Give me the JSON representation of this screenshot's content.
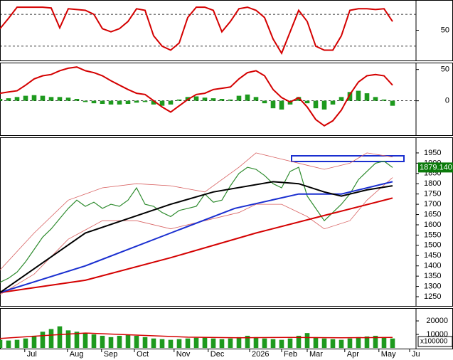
{
  "chart_data": [
    {
      "type": "line",
      "xlim": [
        0,
        48.75
      ],
      "ylim": [
        12,
        88
      ],
      "yticks": [
        50
      ],
      "levels": [
        30,
        70
      ],
      "x": [
        0,
        1,
        2,
        3,
        4,
        5,
        6,
        7,
        8,
        9,
        10,
        11,
        12,
        13,
        14,
        15,
        16,
        17,
        18,
        19,
        20,
        21,
        22,
        23,
        24,
        25,
        26,
        27,
        28,
        29,
        30,
        31,
        32,
        33,
        34,
        35,
        36,
        37,
        38,
        39,
        40,
        41,
        42,
        43,
        44,
        45,
        46
      ],
      "series": [
        {
          "type": "line",
          "color": "#d40000",
          "values": [
            52,
            65,
            79,
            79,
            79,
            79,
            78,
            53,
            77,
            76,
            75,
            70,
            52,
            48,
            52,
            61,
            77,
            75,
            43,
            30,
            25,
            34,
            66,
            79,
            79,
            75,
            48,
            61,
            77,
            79,
            75,
            66,
            39,
            21,
            48,
            75,
            61,
            30,
            25,
            25,
            43,
            75,
            77,
            77,
            76,
            77,
            61
          ]
        }
      ]
    },
    {
      "type": "line",
      "xlim": [
        0,
        48.75
      ],
      "ylim": [
        -55,
        61
      ],
      "yticks": [
        50,
        0
      ],
      "levels": [
        0
      ],
      "x": [
        0,
        1,
        2,
        3,
        4,
        5,
        6,
        7,
        8,
        9,
        10,
        11,
        12,
        13,
        14,
        15,
        16,
        17,
        18,
        19,
        20,
        21,
        22,
        23,
        24,
        25,
        26,
        27,
        28,
        29,
        30,
        31,
        32,
        33,
        34,
        35,
        36,
        37,
        38,
        39,
        40,
        41,
        42,
        43,
        44,
        45,
        46
      ],
      "series": [
        {
          "type": "bar",
          "color": "#1e9a1e",
          "values": [
            3,
            4,
            6,
            8,
            9,
            8,
            6,
            6,
            5,
            3,
            -2,
            -4,
            -5,
            -6,
            -6,
            -5,
            -3,
            -2,
            -6,
            -8,
            -6,
            2,
            6,
            7,
            5,
            4,
            3,
            2,
            8,
            10,
            6,
            -4,
            -12,
            -14,
            -6,
            6,
            -4,
            -12,
            -14,
            -6,
            6,
            14,
            16,
            12,
            6,
            2,
            -8
          ]
        },
        {
          "type": "line",
          "color": "#d40000",
          "values": [
            12,
            14,
            16,
            25,
            35,
            40,
            42,
            48,
            52,
            54,
            48,
            45,
            40,
            32,
            25,
            18,
            12,
            10,
            0,
            -10,
            -18,
            -8,
            2,
            10,
            12,
            18,
            20,
            22,
            35,
            45,
            48,
            40,
            18,
            5,
            -2,
            5,
            -10,
            -30,
            -40,
            -32,
            -15,
            10,
            30,
            40,
            42,
            40,
            25
          ]
        }
      ]
    },
    {
      "type": "line",
      "xlim": [
        0,
        48.75
      ],
      "ylim": [
        1205,
        2026
      ],
      "yticks": [
        1250,
        1300,
        1350,
        1400,
        1450,
        1500,
        1550,
        1600,
        1650,
        1700,
        1750,
        1800,
        1850,
        1900,
        1950
      ],
      "last_price": {
        "value": 1879.14,
        "label": "1879.140"
      },
      "x": [
        0,
        1,
        2,
        3,
        4,
        5,
        6,
        7,
        8,
        9,
        10,
        11,
        12,
        13,
        14,
        15,
        16,
        17,
        18,
        19,
        20,
        21,
        22,
        23,
        24,
        25,
        26,
        27,
        28,
        29,
        30,
        31,
        32,
        33,
        34,
        35,
        36,
        37,
        38,
        39,
        40,
        41,
        42,
        43,
        44,
        45,
        46
      ],
      "series": [
        {
          "type": "line",
          "color": "#d86060",
          "width": 0.8,
          "x": [
            0,
            4,
            8,
            12,
            16,
            20,
            24,
            28,
            30,
            33,
            36,
            38,
            41,
            43,
            46
          ],
          "values": [
            1380,
            1560,
            1720,
            1780,
            1800,
            1790,
            1760,
            1880,
            1950,
            1920,
            1890,
            1870,
            1900,
            1950,
            1930
          ]
        },
        {
          "type": "line",
          "color": "#d86060",
          "width": 0.8,
          "x": [
            0,
            4,
            8,
            12,
            16,
            20,
            24,
            28,
            30,
            33,
            36,
            38,
            41,
            43,
            46
          ],
          "values": [
            1260,
            1360,
            1530,
            1620,
            1620,
            1580,
            1620,
            1660,
            1700,
            1700,
            1640,
            1580,
            1620,
            1720,
            1830
          ]
        },
        {
          "type": "line",
          "color": "#2e8b2e",
          "width": 1.2,
          "values": [
            1320,
            1340,
            1370,
            1420,
            1480,
            1540,
            1580,
            1630,
            1680,
            1720,
            1690,
            1710,
            1680,
            1700,
            1690,
            1720,
            1780,
            1700,
            1690,
            1660,
            1640,
            1670,
            1680,
            1690,
            1750,
            1710,
            1720,
            1790,
            1850,
            1880,
            1870,
            1840,
            1800,
            1780,
            1860,
            1880,
            1740,
            1680,
            1620,
            1660,
            1700,
            1750,
            1820,
            1860,
            1900,
            1910,
            1879.14
          ]
        },
        {
          "type": "line",
          "color": "#d40000",
          "width": 2,
          "x": [
            0,
            10,
            20,
            30,
            37.5,
            46
          ],
          "values": [
            1270,
            1330,
            1440,
            1560,
            1640,
            1730
          ]
        },
        {
          "type": "line",
          "color": "#1a2fd0",
          "width": 2,
          "x": [
            0,
            10,
            20,
            27.5,
            35,
            40,
            46
          ],
          "values": [
            1270,
            1400,
            1560,
            1680,
            1750,
            1750,
            1810
          ]
        },
        {
          "type": "line",
          "color": "#000000",
          "width": 2,
          "x": [
            0,
            10,
            20,
            25,
            32,
            35,
            38,
            40,
            43,
            46
          ],
          "values": [
            1270,
            1560,
            1700,
            1760,
            1810,
            1800,
            1760,
            1740,
            1770,
            1790
          ]
        }
      ]
    },
    {
      "type": "bar",
      "xlim": [
        0,
        48.75
      ],
      "ylim": [
        -500,
        29500
      ],
      "yticks": [
        20000,
        10000
      ],
      "axis_unit": "x100000",
      "x": [
        0,
        1,
        2,
        3,
        4,
        5,
        6,
        7,
        8,
        9,
        10,
        11,
        12,
        13,
        14,
        15,
        16,
        17,
        18,
        19,
        20,
        21,
        22,
        23,
        24,
        25,
        26,
        27,
        28,
        29,
        30,
        31,
        32,
        33,
        34,
        35,
        36,
        37,
        38,
        39,
        40,
        41,
        42,
        43,
        44,
        45,
        46
      ],
      "xticks": [
        {
          "value": 2.9,
          "label": "Jul"
        },
        {
          "value": 7.9,
          "label": "Aug"
        },
        {
          "value": 11.9,
          "label": "Sep"
        },
        {
          "value": 15.75,
          "label": "Oct"
        },
        {
          "value": 20.4,
          "label": "Nov"
        },
        {
          "value": 24.4,
          "label": "Dec"
        },
        {
          "value": 29.25,
          "label": "2026"
        },
        {
          "value": 33,
          "label": "Feb"
        },
        {
          "value": 36,
          "label": "Mar"
        },
        {
          "value": 40.4,
          "label": "Apr"
        },
        {
          "value": 44.4,
          "label": "May"
        },
        {
          "value": 48,
          "label": "Ju"
        }
      ],
      "series": [
        {
          "type": "bar",
          "color": "#1e9a1e",
          "values": [
            6000,
            5500,
            6000,
            7000,
            9000,
            12000,
            14000,
            16000,
            13000,
            12000,
            11000,
            10000,
            9000,
            8000,
            9000,
            10000,
            9000,
            8000,
            7000,
            6500,
            6000,
            6500,
            7000,
            7500,
            8000,
            7000,
            6500,
            7000,
            8000,
            9000,
            8000,
            7000,
            6500,
            6000,
            7000,
            9000,
            11000,
            8000,
            7000,
            6500,
            6000,
            7000,
            8000,
            8500,
            9000,
            8000,
            7000
          ]
        },
        {
          "type": "line",
          "color": "#d40000",
          "width": 1.5,
          "x": [
            0,
            6,
            10,
            16,
            22,
            28,
            34,
            40,
            46
          ],
          "values": [
            7000,
            9500,
            11000,
            9500,
            8000,
            7500,
            7800,
            7500,
            7800
          ]
        }
      ]
    }
  ]
}
